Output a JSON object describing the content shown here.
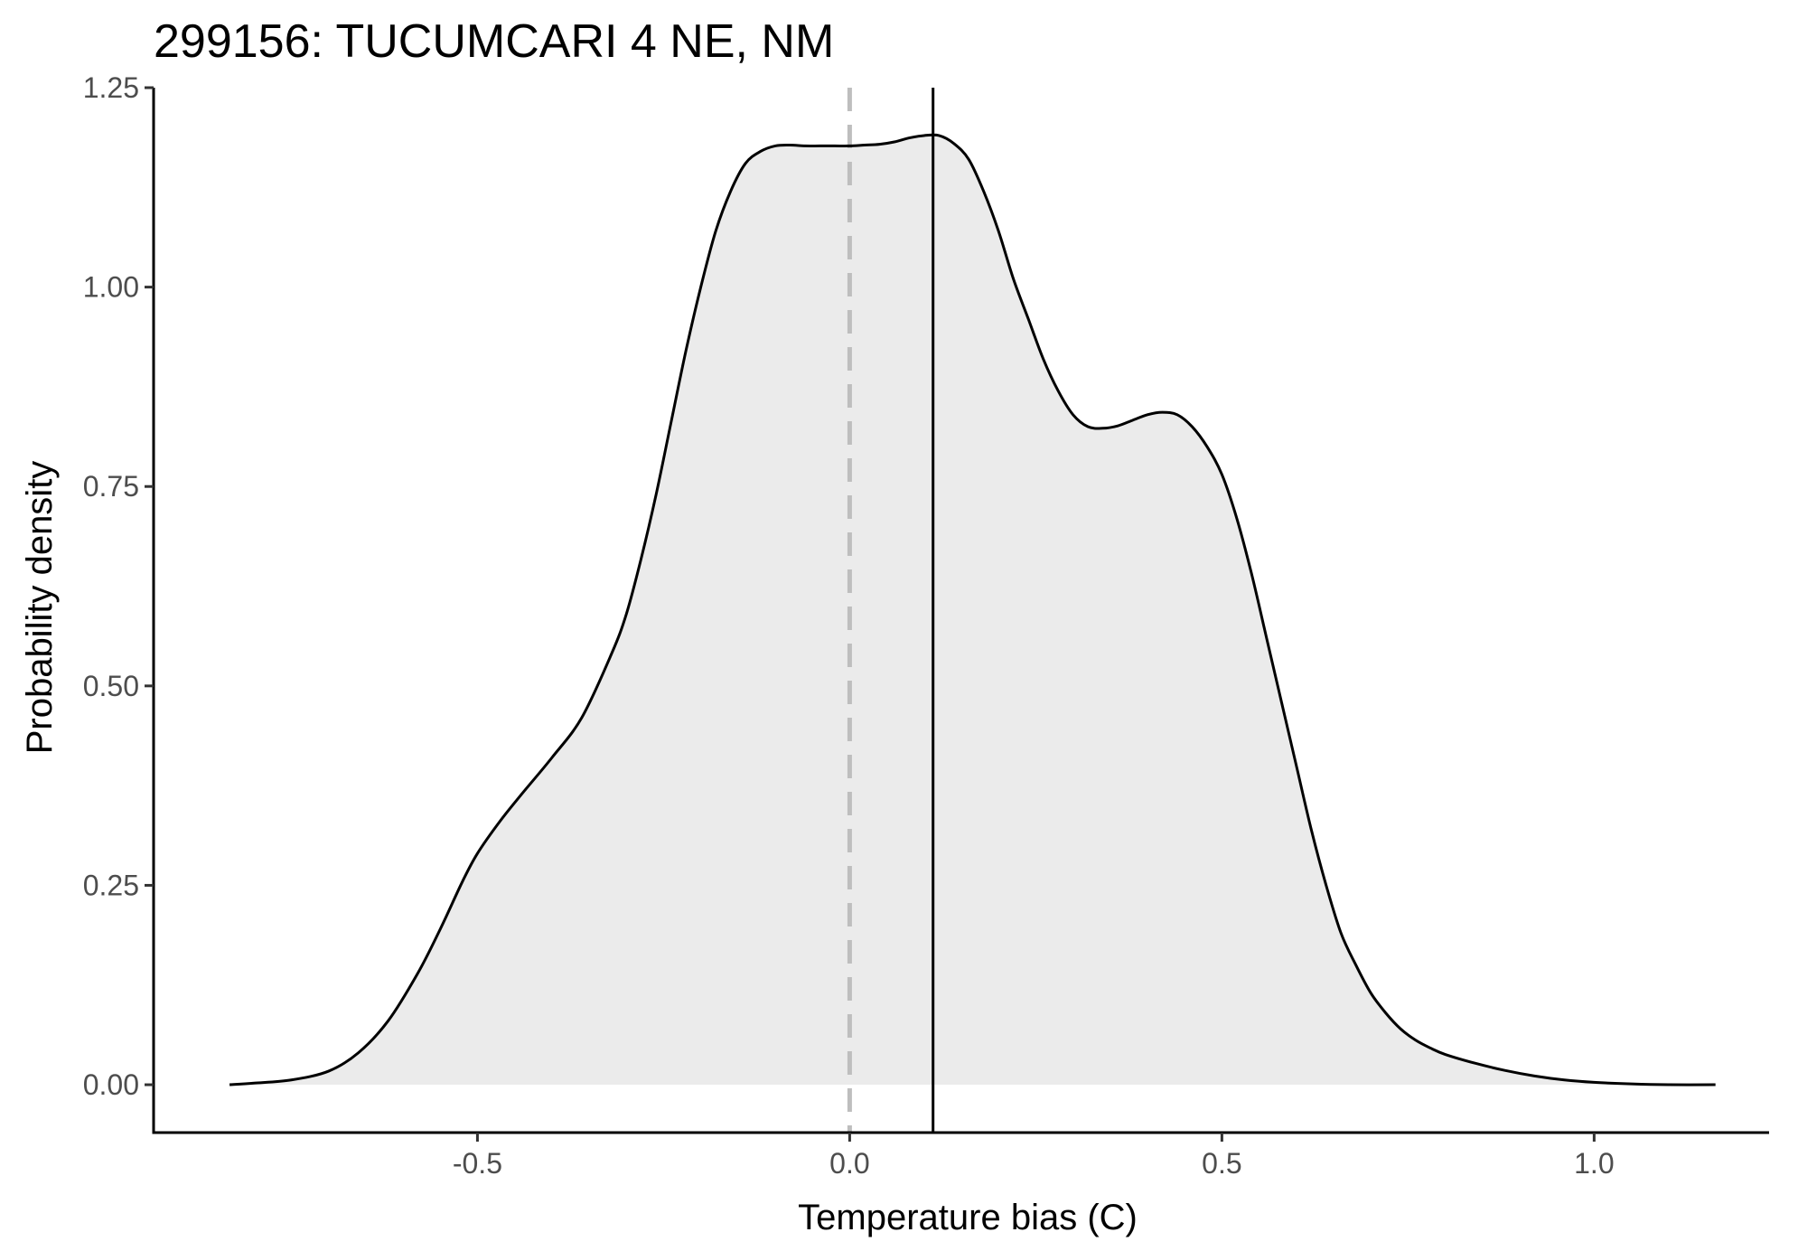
{
  "chart_data": {
    "type": "area",
    "title": "299156: TUCUMCARI 4 NE, NM",
    "xlabel": "Temperature bias (C)",
    "ylabel": "Probability density",
    "xlim": [
      -0.935,
      1.235
    ],
    "ylim": [
      -0.06,
      1.25
    ],
    "x_ticks": [
      -0.5,
      0.0,
      0.5,
      1.0
    ],
    "x_tick_labels": [
      "-0.5",
      "0.0",
      "0.5",
      "1.0"
    ],
    "y_ticks": [
      0.0,
      0.25,
      0.5,
      0.75,
      1.0,
      1.25
    ],
    "y_tick_labels": [
      "0.00",
      "0.25",
      "0.50",
      "0.75",
      "1.00",
      "1.25"
    ],
    "grid": false,
    "legend": "none",
    "colors": {
      "fill": "#ebebeb",
      "line": "#000000",
      "zero_line": "#bebebe",
      "axis": "#000000"
    },
    "reference_lines": [
      {
        "x": 0.0,
        "style": "dashed",
        "color": "#bebebe"
      },
      {
        "x": 0.112,
        "style": "solid",
        "color": "#000000"
      }
    ],
    "density": {
      "x": [
        -0.833,
        -0.8,
        -0.75,
        -0.7,
        -0.66,
        -0.62,
        -0.58,
        -0.55,
        -0.52,
        -0.5,
        -0.47,
        -0.44,
        -0.4,
        -0.36,
        -0.32,
        -0.3,
        -0.28,
        -0.26,
        -0.24,
        -0.22,
        -0.2,
        -0.18,
        -0.16,
        -0.14,
        -0.12,
        -0.1,
        -0.08,
        -0.06,
        -0.04,
        -0.02,
        0.0,
        0.02,
        0.04,
        0.06,
        0.08,
        0.1,
        0.12,
        0.14,
        0.16,
        0.18,
        0.2,
        0.22,
        0.24,
        0.26,
        0.28,
        0.3,
        0.32,
        0.34,
        0.36,
        0.38,
        0.4,
        0.42,
        0.44,
        0.46,
        0.48,
        0.5,
        0.52,
        0.54,
        0.56,
        0.58,
        0.6,
        0.62,
        0.64,
        0.66,
        0.68,
        0.7,
        0.72,
        0.74,
        0.76,
        0.78,
        0.8,
        0.84,
        0.88,
        0.92,
        0.96,
        1.0,
        1.05,
        1.1,
        1.163
      ],
      "y": [
        0.0,
        0.002,
        0.006,
        0.017,
        0.04,
        0.08,
        0.14,
        0.195,
        0.255,
        0.29,
        0.33,
        0.365,
        0.41,
        0.46,
        0.54,
        0.59,
        0.66,
        0.74,
        0.83,
        0.92,
        1.0,
        1.07,
        1.12,
        1.155,
        1.17,
        1.177,
        1.178,
        1.177,
        1.177,
        1.177,
        1.177,
        1.178,
        1.179,
        1.182,
        1.187,
        1.19,
        1.19,
        1.18,
        1.16,
        1.12,
        1.07,
        1.01,
        0.96,
        0.91,
        0.87,
        0.84,
        0.825,
        0.823,
        0.826,
        0.833,
        0.84,
        0.843,
        0.84,
        0.825,
        0.8,
        0.765,
        0.71,
        0.64,
        0.56,
        0.48,
        0.4,
        0.32,
        0.25,
        0.19,
        0.15,
        0.115,
        0.09,
        0.07,
        0.056,
        0.046,
        0.038,
        0.027,
        0.018,
        0.011,
        0.006,
        0.003,
        0.001,
        0.0,
        0.0
      ]
    }
  }
}
